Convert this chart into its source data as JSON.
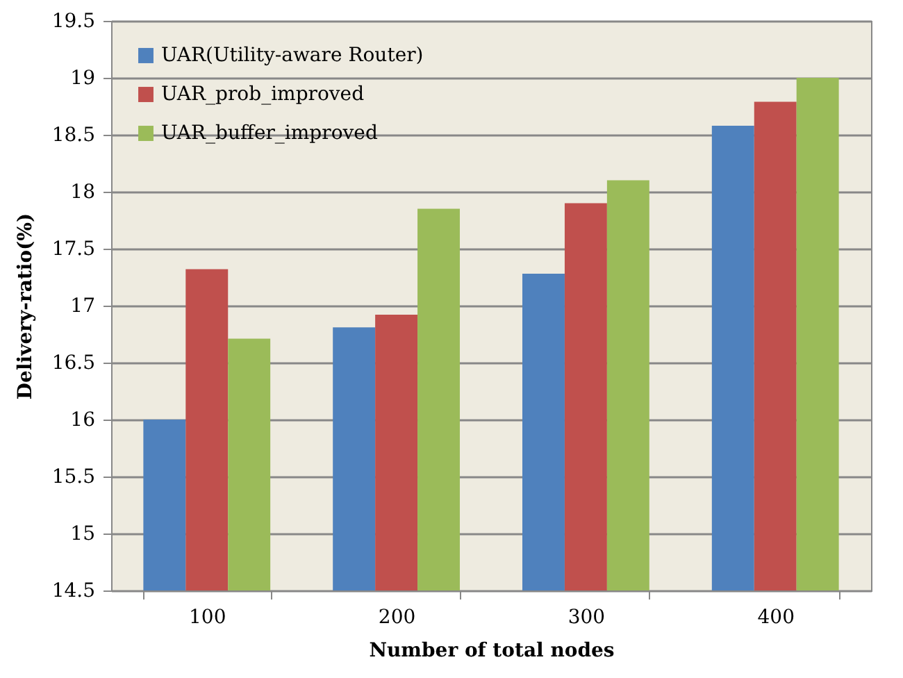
{
  "chart_data": {
    "type": "bar",
    "xlabel": "Number of total nodes",
    "ylabel": "Delivery-ratio(%)",
    "categories": [
      "100",
      "200",
      "300",
      "400"
    ],
    "series": [
      {
        "name": "UAR(Utility-aware Router)",
        "color": "#4f81bd",
        "values": [
          16.0,
          16.81,
          17.28,
          18.58
        ]
      },
      {
        "name": "UAR_prob_improved",
        "color": "#c0504d",
        "values": [
          17.32,
          16.92,
          17.9,
          18.79
        ]
      },
      {
        "name": "UAR_buffer_improved",
        "color": "#9bbb59",
        "values": [
          16.71,
          17.85,
          18.1,
          19.0
        ]
      }
    ],
    "ylim": [
      14.5,
      19.5
    ],
    "yticks": [
      14.5,
      15,
      15.5,
      16,
      16.5,
      17,
      17.5,
      18,
      18.5,
      19,
      19.5
    ],
    "grid": "y",
    "legend": "top left"
  }
}
